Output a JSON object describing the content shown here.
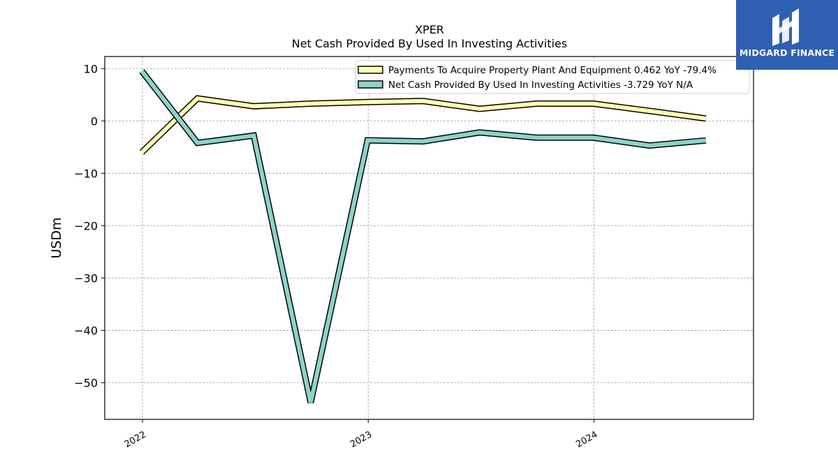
{
  "chart_data": {
    "type": "line",
    "title": "XPER",
    "subtitle": "Net Cash Provided By Used In Investing Activities",
    "ylabel": "USDm",
    "xlabel": "",
    "ylim": [
      -57,
      12.3
    ],
    "xlim": [
      "2021-11-01",
      "2024-09-15"
    ],
    "yticks": [
      10,
      0,
      -10,
      -20,
      -30,
      -40,
      -50
    ],
    "ytick_labels": [
      "10",
      "0",
      "−10",
      "−20",
      "−30",
      "−40",
      "−50"
    ],
    "xticks": [
      "2022-01-01",
      "2023-01-01",
      "2024-01-01"
    ],
    "xtick_labels": [
      "2022",
      "2023",
      "2024"
    ],
    "grid": true,
    "legend_position": "top-right",
    "x": [
      "2021-12-31",
      "2022-03-31",
      "2022-06-30",
      "2022-09-30",
      "2022-12-31",
      "2023-03-31",
      "2023-06-30",
      "2023-09-30",
      "2023-12-31",
      "2024-03-31",
      "2024-06-30"
    ],
    "series": [
      {
        "name": "Payments To Acquire Property Plant And Equipment  0.462 YoY -79.4%",
        "values": [
          -6.0,
          4.3,
          2.8,
          3.3,
          3.6,
          3.8,
          2.3,
          3.3,
          3.3,
          1.9,
          0.462
        ],
        "color": "#ffffb3"
      },
      {
        "name": "Net Cash Provided By Used In Investing Activities  -3.729 YoY N/A",
        "values": [
          9.5,
          -4.2,
          -2.8,
          -53.8,
          -3.7,
          -3.9,
          -2.2,
          -3.2,
          -3.2,
          -4.7,
          -3.729
        ],
        "color": "#8dd3c7"
      }
    ]
  },
  "logo": {
    "text": "MIDGARD FINANCE"
  }
}
